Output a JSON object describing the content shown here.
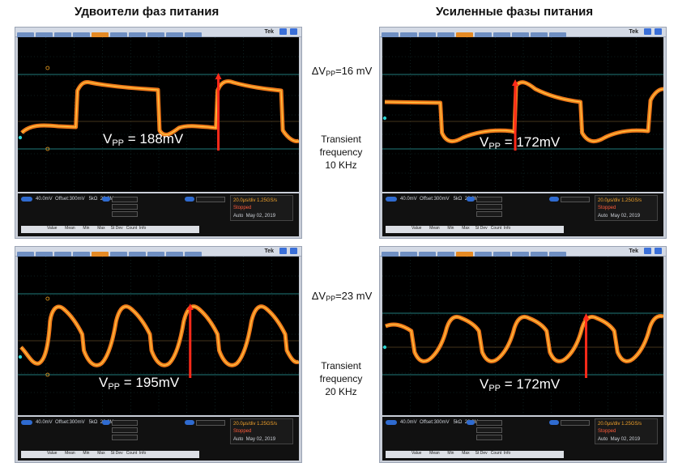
{
  "headers": {
    "left": "Удвоители фаз питания",
    "right": "Усиленные фазы питания"
  },
  "scope": {
    "brand": "Tek",
    "measure_headers": [
      "Value",
      "Mean",
      "Min",
      "Max",
      "St Dev",
      "Count",
      "Info"
    ]
  },
  "panels": [
    {
      "vpp_prefix": "V",
      "vpp_sub": "PP",
      "vpp_value": " = 188mV"
    },
    {
      "vpp_prefix": "V",
      "vpp_sub": "PP",
      "vpp_value": " = 172mV"
    },
    {
      "vpp_prefix": "V",
      "vpp_sub": "PP",
      "vpp_value": " = 195mV"
    },
    {
      "vpp_prefix": "V",
      "vpp_sub": "PP",
      "vpp_value": " = 172mV"
    }
  ],
  "middle": {
    "row1": {
      "delta_prefix": "ΔV",
      "delta_sub": "PP",
      "delta_value": "=16 mV",
      "transient_line1": "Transient",
      "transient_line2": "frequency",
      "transient_line3": "10 KHz"
    },
    "row2": {
      "delta_prefix": "ΔV",
      "delta_sub": "PP",
      "delta_value": "=23 mV",
      "transient_line1": "Transient",
      "transient_line2": "frequency",
      "transient_line3": "20 KHz"
    }
  },
  "colors": {
    "trace": "#f07a1a",
    "trace_core": "#ffd24a",
    "grid": "#2aa3a3",
    "marker": "#ff2a1a",
    "menu_active": "#e58a24"
  }
}
